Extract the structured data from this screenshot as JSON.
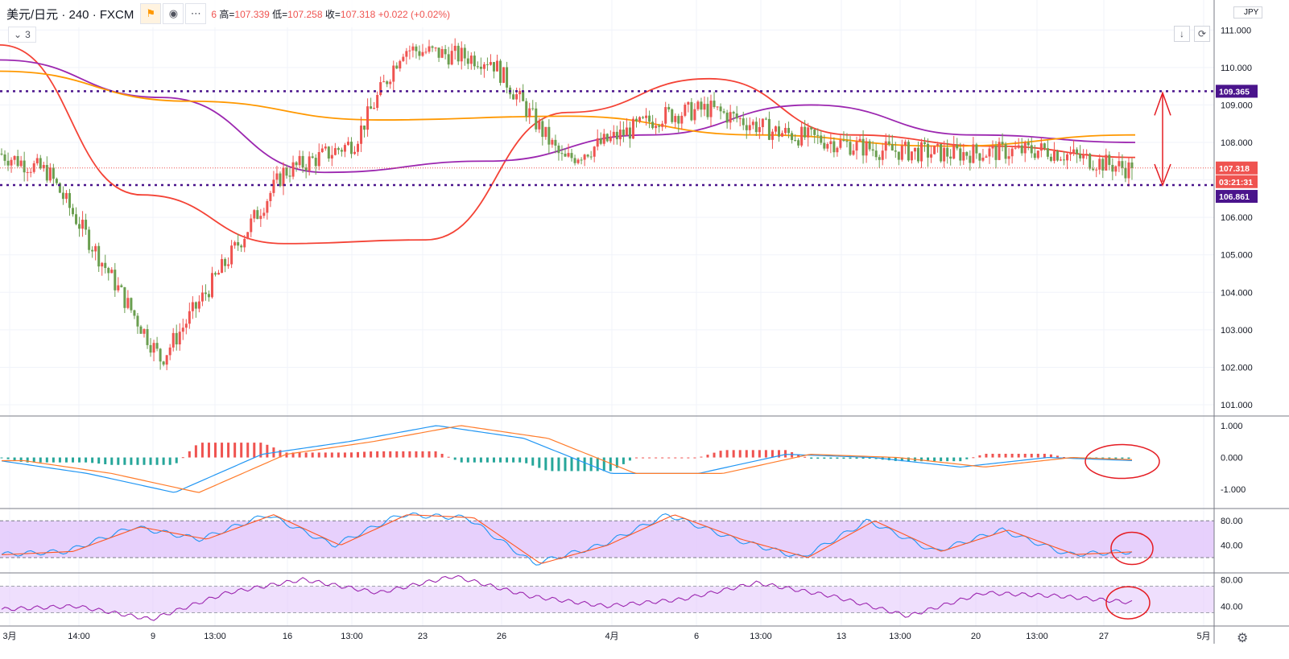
{
  "header": {
    "symbol": "美元/日元 · 240 · FXCM",
    "ohlc_prefix": "6",
    "high_label": "高=",
    "high": "107.339",
    "low_label": "低=",
    "low": "107.258",
    "close_label": "收=",
    "close": "107.318",
    "change": "+0.022 (+0.02%)",
    "indicator_count": "3"
  },
  "icons": {
    "flag": "flag-icon",
    "eye": "eye-icon",
    "more": "more-icon",
    "down": "arrow-down-icon",
    "refresh": "refresh-icon",
    "collapse": "chevron-down-icon"
  },
  "price_axis": {
    "currency": "JPY",
    "ticks": [
      "111.000",
      "110.000",
      "109.000",
      "108.000",
      "107.000",
      "106.000",
      "105.000",
      "104.000",
      "103.000",
      "102.000",
      "101.000"
    ],
    "range": [
      100.7,
      111.8
    ]
  },
  "price_labels": {
    "upper": "109.365",
    "last": "107.318",
    "countdown": "03:21:31",
    "lower": "106.861"
  },
  "time_axis": {
    "labels": [
      "3月",
      "14:00",
      "9",
      "13:00",
      "16",
      "13:00",
      "23",
      "26",
      "4月",
      "6",
      "13:00",
      "13",
      "13:00",
      "20",
      "13:00",
      "27",
      "5月"
    ]
  },
  "levels": {
    "upper": 109.365,
    "lower": 106.861,
    "last": 107.318
  },
  "panes": {
    "macd": {
      "ticks": [
        "1.000",
        "0.000",
        "-1.000"
      ],
      "range": [
        -1.6,
        1.3
      ]
    },
    "stoch": {
      "ticks": [
        "80.00",
        "40.00"
      ],
      "range": [
        -5,
        100
      ],
      "band": [
        20,
        80
      ]
    },
    "rsi": {
      "ticks": [
        "80.00",
        "40.00"
      ],
      "range": [
        10,
        90
      ],
      "band": [
        30,
        70
      ]
    }
  },
  "colors": {
    "up": "#ef5350",
    "down": "#6a9e4f",
    "ma_fast": "#f44336",
    "ma_mid": "#9c27b0",
    "ma_slow": "#ff9800",
    "level": "#4a148c",
    "macd_line": "#2196f3",
    "signal_line": "#ff7c2b",
    "band_fill": "#e1c4fb",
    "rsi_line": "#9c27b0"
  },
  "chart_data": {
    "type": "candlestick",
    "instrument": "USD/JPY",
    "timeframe_minutes": 240,
    "x": [
      "3月",
      "14:00",
      "9",
      "13:00",
      "16",
      "13:00",
      "23",
      "26",
      "4月",
      "6",
      "13:00",
      "13",
      "13:00",
      "20",
      "13:00",
      "27"
    ],
    "close": [
      107.7,
      107.2,
      102.2,
      105.1,
      107.2,
      108.0,
      110.5,
      110.2,
      107.5,
      108.7,
      108.9,
      108.3,
      107.8,
      107.7,
      107.8,
      107.3
    ],
    "moving_averages": [
      {
        "values": [
          110.6,
          106.6,
          105.3,
          105.4,
          108.8,
          109.7,
          108.2,
          107.9,
          107.6
        ]
      },
      {
        "values": [
          110.2,
          109.2,
          107.2,
          107.5,
          108.2,
          109.0,
          108.2,
          108.0
        ]
      },
      {
        "values": [
          109.9,
          109.1,
          108.6,
          108.7,
          108.2,
          107.9,
          108.2
        ]
      }
    ],
    "macd": {
      "values": [
        -0.1,
        -0.5,
        -1.1,
        0.1,
        0.5,
        1.0,
        0.6,
        -0.5,
        -0.5,
        0.1,
        0.0,
        -0.3,
        0.0,
        -0.1
      ]
    },
    "stochastic": {
      "values": [
        25,
        30,
        70,
        50,
        90,
        40,
        90,
        85,
        10,
        40,
        90,
        50,
        20,
        80,
        30,
        65,
        25,
        30
      ]
    },
    "rsi": {
      "values": [
        35,
        40,
        20,
        60,
        80,
        60,
        85,
        55,
        40,
        50,
        75,
        55,
        25,
        60,
        55,
        45
      ]
    },
    "annotations": [
      "109.365",
      "106.861"
    ]
  }
}
